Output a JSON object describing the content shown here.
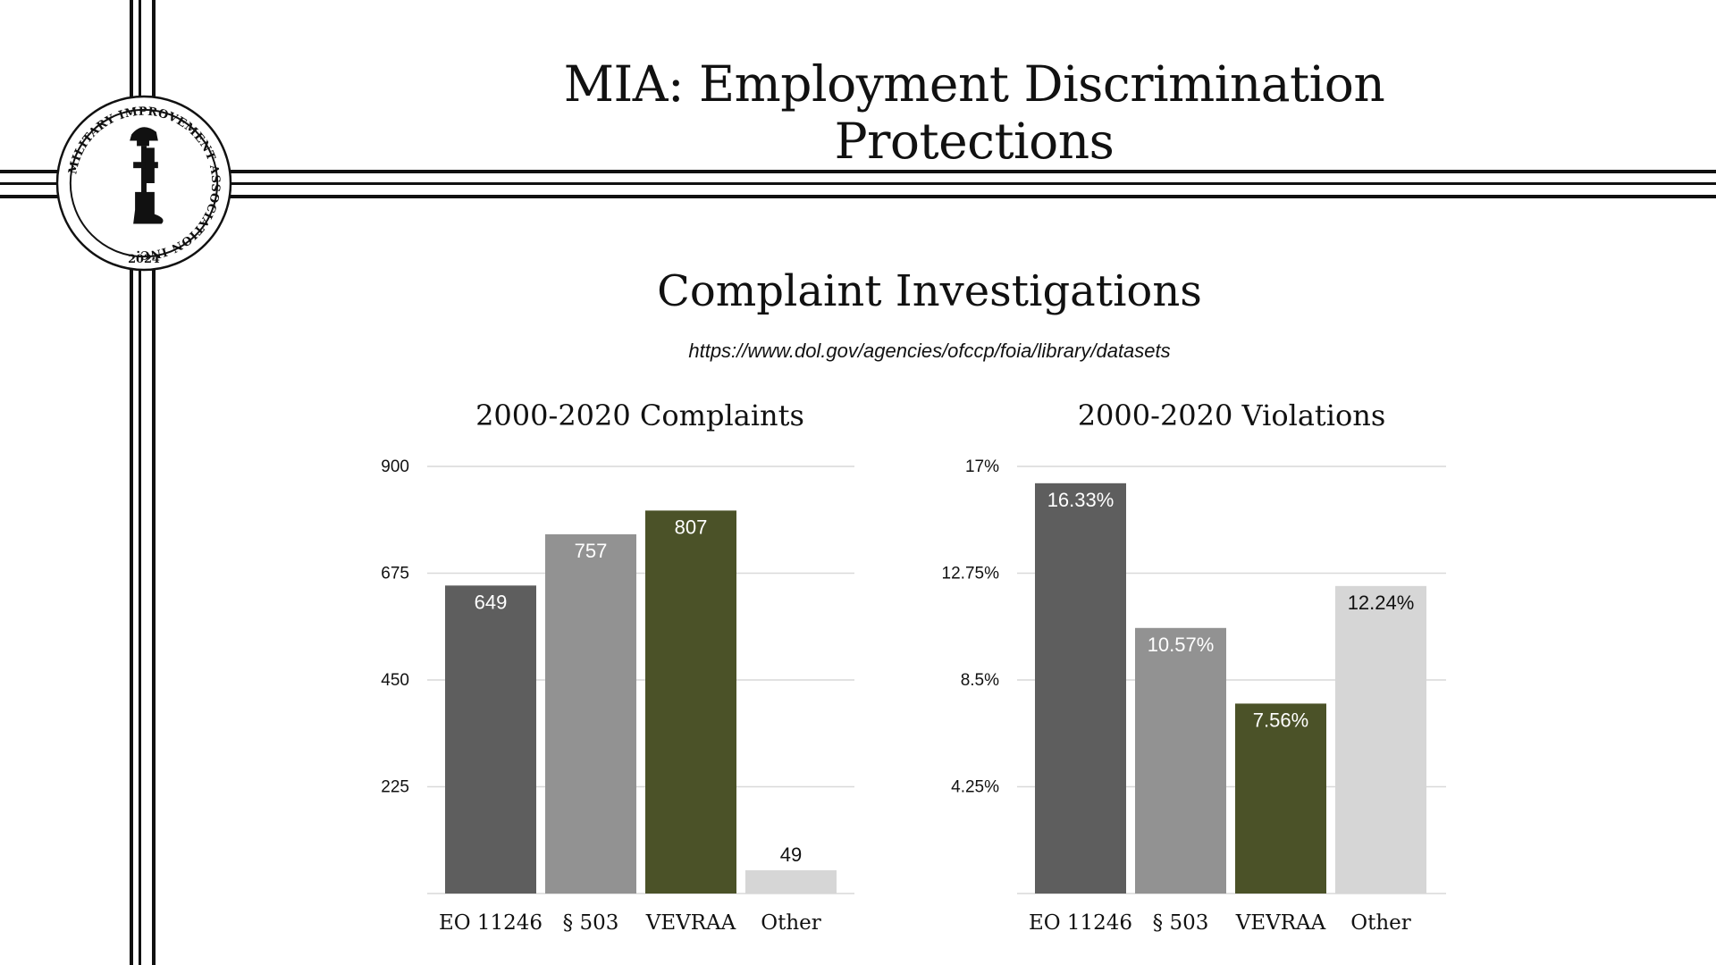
{
  "header": {
    "title": "MIA: Employment Discrimination Protections"
  },
  "seal": {
    "ring_text": "MILITARY IMPROVEMENT ASSOCIATION INC.",
    "year": "2024"
  },
  "section": {
    "title": "Complaint Investigations",
    "source_url": "https://www.dol.gov/agencies/ofccp/foia/library/datasets"
  },
  "colors": {
    "eo11246": "#5e5e5e",
    "s503": "#929292",
    "vevraa": "#4b5228",
    "other": "#d6d6d6",
    "grid": "#d9d9d9"
  },
  "chart_data": [
    {
      "type": "bar",
      "title": "2000-2020 Complaints",
      "categories": [
        "EO 11246",
        "§ 503",
        "VEVRAA",
        "Other"
      ],
      "values": [
        649,
        757,
        807,
        49
      ],
      "value_labels": [
        "649",
        "757",
        "807",
        "49"
      ],
      "yticks": [
        225,
        450,
        675,
        900
      ],
      "ytick_labels": [
        "225",
        "450",
        "675",
        "900"
      ],
      "ylim": [
        0,
        900
      ],
      "xlabel": "",
      "ylabel": "",
      "grid": true
    },
    {
      "type": "bar",
      "title": "2000-2020 Violations",
      "categories": [
        "EO 11246",
        "§ 503",
        "VEVRAA",
        "Other"
      ],
      "values": [
        16.33,
        10.57,
        7.56,
        12.24
      ],
      "value_labels": [
        "16.33%",
        "10.57%",
        "7.56%",
        "12.24%"
      ],
      "yticks": [
        4.25,
        8.5,
        12.75,
        17
      ],
      "ytick_labels": [
        "4.25%",
        "8.5%",
        "12.75%",
        "17%"
      ],
      "ylim": [
        0,
        17
      ],
      "xlabel": "",
      "ylabel": "",
      "grid": true
    }
  ]
}
